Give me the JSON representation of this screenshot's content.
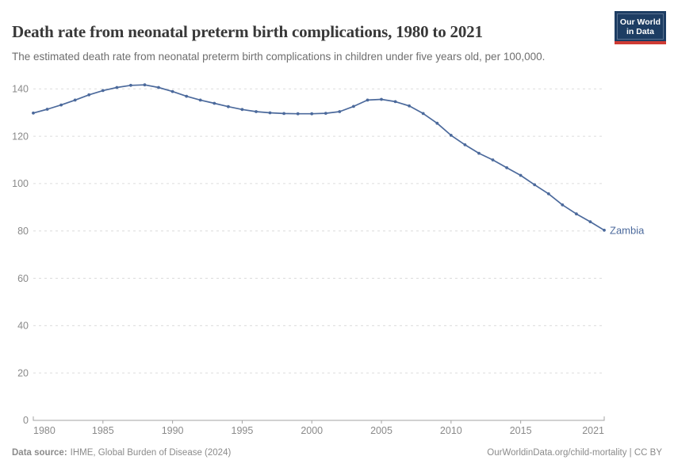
{
  "header": {
    "title": "Death rate from neonatal preterm birth complications, 1980 to 2021",
    "subtitle": "The estimated death rate from neonatal preterm birth complications in children under five years old, per 100,000.",
    "logo": {
      "line1": "Our World",
      "line2": "in Data"
    }
  },
  "chart_data": {
    "type": "line",
    "title": "Death rate from neonatal preterm birth complications, 1980 to 2021",
    "xlabel": "",
    "ylabel": "",
    "xlim": [
      1980,
      2021
    ],
    "ylim": [
      0,
      140
    ],
    "yticks": [
      0,
      20,
      40,
      60,
      80,
      100,
      120,
      140
    ],
    "xticks": [
      1980,
      1985,
      1990,
      1995,
      2000,
      2005,
      2010,
      2015,
      2021
    ],
    "grid": "horizontal-dashed",
    "legend_position": "end-of-line-label",
    "series": [
      {
        "name": "Zambia",
        "color": "#4C6A9C",
        "years": [
          1980,
          1981,
          1982,
          1983,
          1984,
          1985,
          1986,
          1987,
          1988,
          1989,
          1990,
          1991,
          1992,
          1993,
          1994,
          1995,
          1996,
          1997,
          1998,
          1999,
          2000,
          2001,
          2002,
          2003,
          2004,
          2005,
          2006,
          2007,
          2008,
          2009,
          2010,
          2011,
          2012,
          2013,
          2014,
          2015,
          2016,
          2017,
          2018,
          2019,
          2020,
          2021
        ],
        "values": [
          129.8,
          131.4,
          133.2,
          135.3,
          137.5,
          139.3,
          140.6,
          141.5,
          141.7,
          140.6,
          138.9,
          136.9,
          135.3,
          133.9,
          132.5,
          131.3,
          130.4,
          129.9,
          129.6,
          129.5,
          129.5,
          129.7,
          130.4,
          132.6,
          135.3,
          135.6,
          134.6,
          132.8,
          129.6,
          125.5,
          120.4,
          116.4,
          112.8,
          110.0,
          106.7,
          103.5,
          99.5,
          95.7,
          91.0,
          87.2,
          83.9,
          80.3
        ]
      }
    ]
  },
  "footer": {
    "source_label": "Data source:",
    "source_text": "IHME, Global Burden of Disease (2024)",
    "credit": "OurWorldinData.org/child-mortality | CC BY"
  },
  "colors": {
    "line": "#4C6A9C",
    "gridline": "#dcdcdc",
    "axis": "#a3a3a3",
    "tick_label": "#8a8a8a",
    "title_text": "#383838",
    "subtitle_text": "#6e6e6e",
    "logo_bg": "#1d3d63",
    "logo_red": "#cf3b34"
  }
}
